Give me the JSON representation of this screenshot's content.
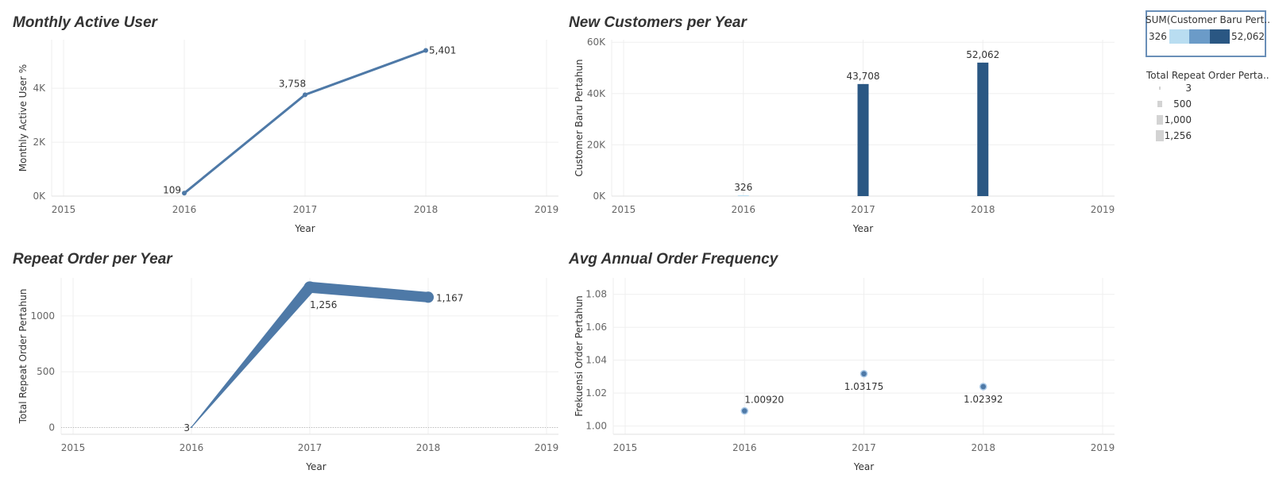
{
  "chart_data": [
    {
      "id": "mau",
      "type": "line",
      "title": "Monthly Active User",
      "xlabel": "Year",
      "ylabel": "Monthly Active User %",
      "xlim": [
        2015,
        2019
      ],
      "x_ticks": [
        "2015",
        "2016",
        "2017",
        "2018",
        "2019"
      ],
      "ylim": [
        0,
        5800
      ],
      "y_ticks": [
        {
          "v": 0,
          "label": "0K"
        },
        {
          "v": 2000,
          "label": "2K"
        },
        {
          "v": 4000,
          "label": "4K"
        }
      ],
      "color": "#4e79a7",
      "points": [
        {
          "x": 2016,
          "y": 109,
          "label": "109"
        },
        {
          "x": 2017,
          "y": 3758,
          "label": "3,758"
        },
        {
          "x": 2018,
          "y": 5401,
          "label": "5,401"
        }
      ]
    },
    {
      "id": "newcust",
      "type": "bar",
      "title": "New Customers per Year",
      "xlabel": "Year",
      "ylabel": "Customer Baru Pertahun",
      "xlim": [
        2015,
        2019
      ],
      "x_ticks": [
        "2015",
        "2016",
        "2017",
        "2018",
        "2019"
      ],
      "ylim": [
        0,
        61000
      ],
      "y_ticks": [
        {
          "v": 0,
          "label": "0K"
        },
        {
          "v": 20000,
          "label": "20K"
        },
        {
          "v": 40000,
          "label": "40K"
        },
        {
          "v": 60000,
          "label": "60K"
        }
      ],
      "points": [
        {
          "x": 2016,
          "y": 326,
          "label": "326",
          "color": "#b9ddf1"
        },
        {
          "x": 2017,
          "y": 43708,
          "label": "43,708",
          "color": "#2a5783"
        },
        {
          "x": 2018,
          "y": 52062,
          "label": "52,062",
          "color": "#2a5783"
        }
      ]
    },
    {
      "id": "repeat",
      "type": "line",
      "title": "Repeat Order per Year",
      "xlabel": "Year",
      "ylabel": "Total Repeat Order Pertahun",
      "xlim": [
        2015,
        2019
      ],
      "x_ticks": [
        "2015",
        "2016",
        "2017",
        "2018",
        "2019"
      ],
      "ylim": [
        -60,
        1340
      ],
      "y_ticks": [
        {
          "v": 0,
          "label": "0"
        },
        {
          "v": 500,
          "label": "500"
        },
        {
          "v": 1000,
          "label": "1000"
        }
      ],
      "color": "#4e79a7",
      "points": [
        {
          "x": 2016,
          "y": 3,
          "label": "3"
        },
        {
          "x": 2017,
          "y": 1256,
          "label": "1,256"
        },
        {
          "x": 2018,
          "y": 1167,
          "label": "1,167"
        }
      ]
    },
    {
      "id": "freq",
      "type": "scatter",
      "title": "Avg Annual Order Frequency",
      "xlabel": "Year",
      "ylabel": "Frekuensi Order Pertahun",
      "xlim": [
        2015,
        2019
      ],
      "x_ticks": [
        "2015",
        "2016",
        "2017",
        "2018",
        "2019"
      ],
      "ylim": [
        0.995,
        1.09
      ],
      "y_ticks": [
        {
          "v": 1.0,
          "label": "1.00"
        },
        {
          "v": 1.02,
          "label": "1.02"
        },
        {
          "v": 1.04,
          "label": "1.04"
        },
        {
          "v": 1.06,
          "label": "1.06"
        },
        {
          "v": 1.08,
          "label": "1.08"
        }
      ],
      "color": "#4e79a7",
      "points": [
        {
          "x": 2016,
          "y": 1.0092,
          "label": "1.00920"
        },
        {
          "x": 2017,
          "y": 1.03175,
          "label": "1.03175"
        },
        {
          "x": 2018,
          "y": 1.02392,
          "label": "1.02392"
        }
      ]
    }
  ],
  "legend_color": {
    "title": "SUM(Customer Baru Pert..",
    "min_label": "326",
    "max_label": "52,062",
    "colors": [
      "#b9ddf1",
      "#6b9bc8",
      "#2a5783"
    ]
  },
  "legend_size": {
    "title": "Total Repeat Order Perta..",
    "items": [
      {
        "label": "3",
        "size": 3
      },
      {
        "label": "500",
        "size": 500
      },
      {
        "label": "1,000",
        "size": 1000
      },
      {
        "label": "1,256",
        "size": 1256
      }
    ]
  }
}
